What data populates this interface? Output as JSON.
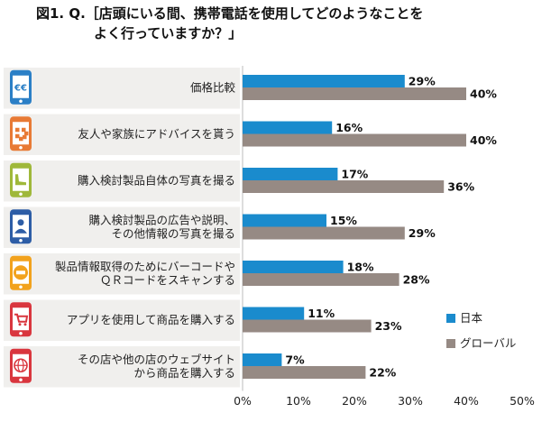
{
  "title": {
    "line1": "図1.  Q.［店頭にいる間、携帯電話を使用してどのようなことを",
    "line2": "よく行っていますか？」"
  },
  "colors": {
    "japan": "#1a8bcd",
    "global": "#968a84",
    "row_bg": "#f0efed",
    "axis": "#bbbbbb"
  },
  "chart_data": {
    "type": "bar",
    "orientation": "horizontal",
    "categories": [
      [
        "価格比較"
      ],
      [
        "友人や家族にアドバイスを貰う"
      ],
      [
        "購入検討製品自体の写真を撮る"
      ],
      [
        "購入検討製品の広告や説明、",
        "その他情報の写真を撮る"
      ],
      [
        "製品情報取得のためにバーコードや",
        "ＱＲコードをスキャンする"
      ],
      [
        "アプリを使用して商品を購入する"
      ],
      [
        "その店や他の店のウェブサイト",
        "から商品を購入する"
      ]
    ],
    "series": [
      {
        "name": "日本",
        "values": [
          29,
          16,
          17,
          15,
          18,
          11,
          7
        ]
      },
      {
        "name": "グローバル",
        "values": [
          40,
          40,
          36,
          29,
          28,
          23,
          22
        ]
      }
    ],
    "value_labels": {
      "japan": [
        "29%",
        "16%",
        "17%",
        "15%",
        "18%",
        "11%",
        "7%"
      ],
      "global": [
        "40%",
        "40%",
        "36%",
        "29%",
        "28%",
        "23%",
        "22%"
      ]
    },
    "xlim": [
      0,
      50
    ],
    "xticks": [
      "0%",
      "10%",
      "20%",
      "30%",
      "40%",
      "50%"
    ],
    "legend_position": "bottom-right",
    "icons": [
      "euro-phone-icon",
      "qr-code-phone-icon",
      "shoe-phone-icon",
      "person-phone-icon",
      "barcode-sticker-phone-icon",
      "shopping-cart-phone-icon",
      "globe-phone-icon"
    ],
    "icon_colors": [
      "#2b7fc6",
      "#e87a35",
      "#9fb83a",
      "#2d5da6",
      "#f2a21d",
      "#d9363e",
      "#d9363e"
    ]
  }
}
